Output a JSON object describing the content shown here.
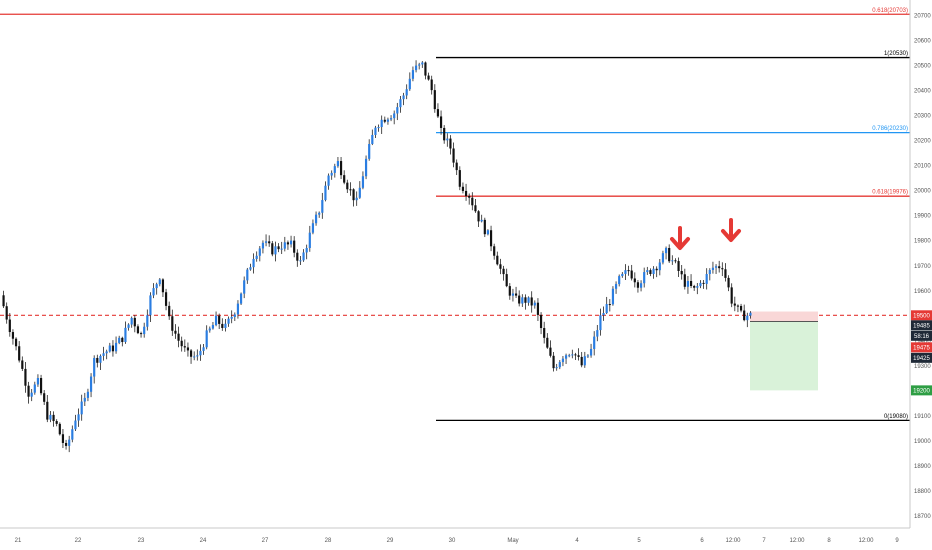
{
  "chart_data": {
    "type": "candlestick",
    "title": "",
    "xlabel": "",
    "ylabel": "",
    "ylim": [
      18650,
      20760
    ],
    "y_ticks": [
      18700,
      18800,
      18900,
      19000,
      19100,
      19200,
      19300,
      19400,
      19500,
      19600,
      19700,
      19800,
      19900,
      20000,
      20100,
      20200,
      20300,
      20400,
      20500,
      20600,
      20700
    ],
    "x_ticks": [
      "21",
      "22",
      "23",
      "24",
      "27",
      "28",
      "29",
      "30",
      "May",
      "4",
      "5",
      "6",
      "12:00",
      "7",
      "12:00",
      "8",
      "12:00",
      "9"
    ],
    "grid": false,
    "price_path": [
      19580,
      19450,
      19330,
      19190,
      19230,
      19100,
      19060,
      18960,
      19090,
      19160,
      19320,
      19350,
      19370,
      19410,
      19490,
      19420,
      19570,
      19660,
      19480,
      19400,
      19340,
      19330,
      19420,
      19480,
      19450,
      19520,
      19630,
      19740,
      19790,
      19760,
      19780,
      19780,
      19710,
      19820,
      19920,
      20060,
      20110,
      20020,
      19950,
      20120,
      20260,
      20290,
      20310,
      20380,
      20480,
      20500,
      20400,
      20230,
      20170,
      20030,
      19980,
      19890,
      19820,
      19720,
      19610,
      19560,
      19560,
      19540,
      19400,
      19290,
      19340,
      19360,
      19300,
      19360,
      19490,
      19560,
      19640,
      19680,
      19630,
      19670,
      19700,
      19750,
      19700,
      19630,
      19600,
      19640,
      19690,
      19700,
      19560,
      19500,
      19500
    ],
    "levels": [
      {
        "label": "0.618(20703)",
        "value": 20703,
        "color": "#e53935",
        "extends": "full"
      },
      {
        "label": "1(20530)",
        "value": 20530,
        "color": "#000000",
        "extends": "partial"
      },
      {
        "label": "0.786(20230)",
        "value": 20230,
        "color": "#2196f3",
        "extends": "partial"
      },
      {
        "label": "0.618(19976)",
        "value": 19976,
        "color": "#e53935",
        "extends": "partial"
      },
      {
        "label": "0(19080)",
        "value": 19080,
        "color": "#000000",
        "extends": "partial"
      }
    ],
    "current_price": 19500,
    "price_badges": [
      {
        "label": "19500",
        "value": 19500,
        "bg": "#e53935",
        "fg": "#ffffff"
      },
      {
        "label": "19485",
        "value": 19460,
        "bg": "#1f2937",
        "fg": "#ffffff"
      },
      {
        "label": "58:16",
        "value": 19418,
        "bg": "#1f2937",
        "fg": "#ffffff"
      },
      {
        "label": "19475",
        "value": 19372,
        "bg": "#e53935",
        "fg": "#ffffff"
      },
      {
        "label": "19425",
        "value": 19330,
        "bg": "#1f2937",
        "fg": "#ffffff"
      },
      {
        "label": "19200",
        "value": 19200,
        "bg": "#2e9e44",
        "fg": "#ffffff"
      }
    ],
    "position_box": {
      "entry": 19475,
      "stop": 19515,
      "target": 19200,
      "risk_color": "#f9d7d7",
      "reward_color": "#d9f2d9"
    },
    "markers": [
      {
        "type": "arrow-down",
        "color": "#e53935"
      },
      {
        "type": "arrow-down",
        "color": "#e53935"
      }
    ],
    "up_color": "#2a7de1",
    "down_color": "#111111"
  }
}
